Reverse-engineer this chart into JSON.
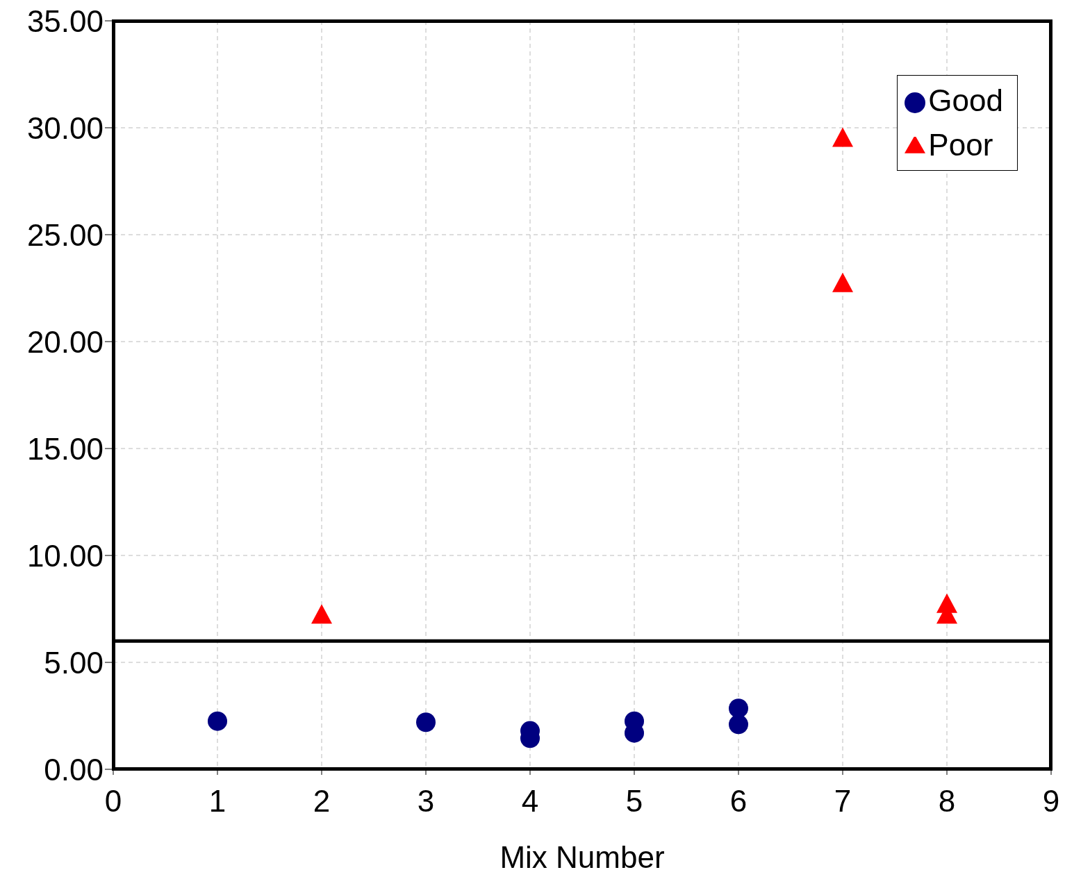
{
  "chart_data": {
    "type": "scatter",
    "xlabel": "Mix Number",
    "xlim": [
      0,
      9
    ],
    "xticks": [
      0,
      1,
      2,
      3,
      4,
      5,
      6,
      7,
      8,
      9
    ],
    "ylim": [
      0,
      35
    ],
    "yticks": [
      {
        "value": 0,
        "label": "0.00"
      },
      {
        "value": 5,
        "label": "5.00"
      },
      {
        "value": 10,
        "label": "10.00"
      },
      {
        "value": 15,
        "label": "15.00"
      },
      {
        "value": 20,
        "label": "20.00"
      },
      {
        "value": 25,
        "label": "25.00"
      },
      {
        "value": 30,
        "label": "30.00"
      },
      {
        "value": 35,
        "label": "35.00"
      }
    ],
    "series": [
      {
        "name": "Good",
        "color": "#000080",
        "marker": "circle",
        "x": [
          1,
          3,
          4,
          4,
          5,
          5,
          6,
          6
        ],
        "values": [
          2.25,
          2.2,
          1.8,
          1.45,
          2.25,
          1.7,
          2.85,
          2.1
        ]
      },
      {
        "name": "Poor",
        "color": "#ff0000",
        "marker": "triangle",
        "x": [
          2,
          7,
          7,
          8,
          8
        ],
        "values": [
          7.2,
          29.5,
          22.7,
          7.7,
          7.2
        ]
      }
    ],
    "ref_lines": [
      {
        "axis": "y",
        "value": 6,
        "color": "#000000"
      }
    ],
    "grid": true,
    "legend": "top right"
  }
}
